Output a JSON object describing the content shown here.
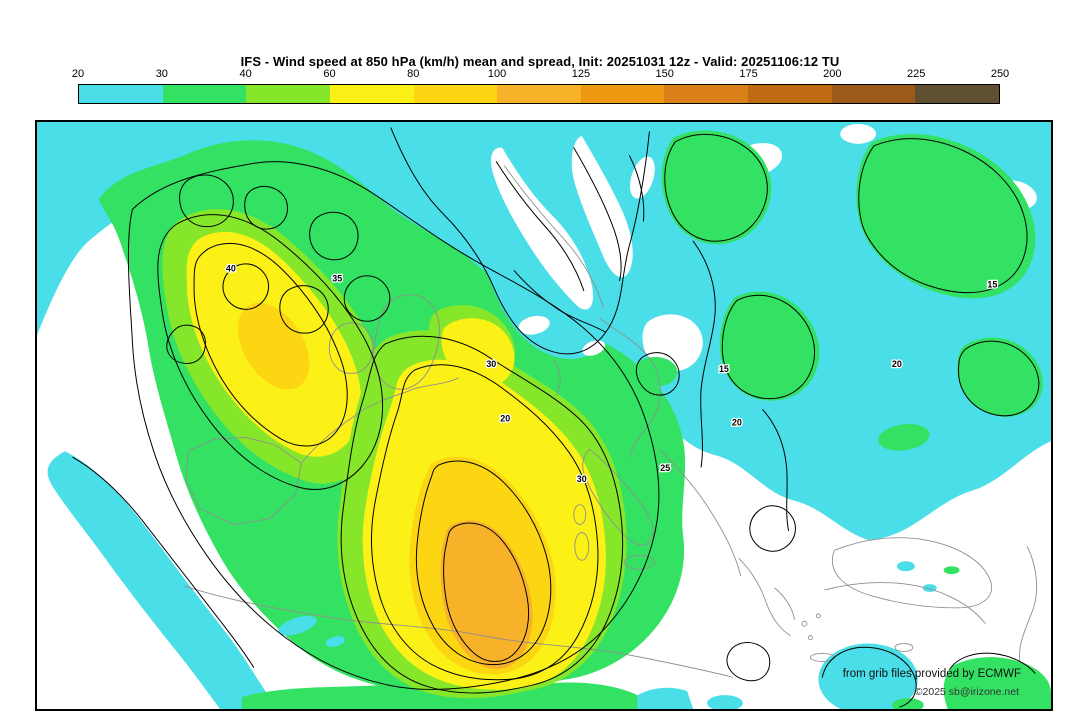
{
  "title": "IFS - Wind speed at 850 hPa (km/h) mean and spread, Init: 20251031 12z - Valid: 20251106:12 TU",
  "colorbar": {
    "ticks": [
      "20",
      "30",
      "40",
      "60",
      "80",
      "100",
      "125",
      "150",
      "175",
      "200",
      "225",
      "250"
    ],
    "colors": [
      "#4ADEE8",
      "#33E163",
      "#86E62A",
      "#FCF116",
      "#FCD612",
      "#F8B229",
      "#ED9A12",
      "#D98118",
      "#BE6B14",
      "#9C5A1A",
      "#5E5030"
    ]
  },
  "map": {
    "contour_labels": [
      "30",
      "20",
      "30",
      "25",
      "15",
      "20",
      "35",
      "40",
      "15",
      "20"
    ],
    "region_colors": {
      "below_20": "#FFFFFF",
      "20_30": "#4ADEE8",
      "30_40": "#33E163",
      "40_60": "#86E62A",
      "60_80": "#FCF116",
      "80_100": "#FCD612",
      "100_125": "#F8B229"
    }
  },
  "credits": {
    "provider": "from grib files provided by ECMWF",
    "copyright": "©2025 sb@irizone.net"
  }
}
